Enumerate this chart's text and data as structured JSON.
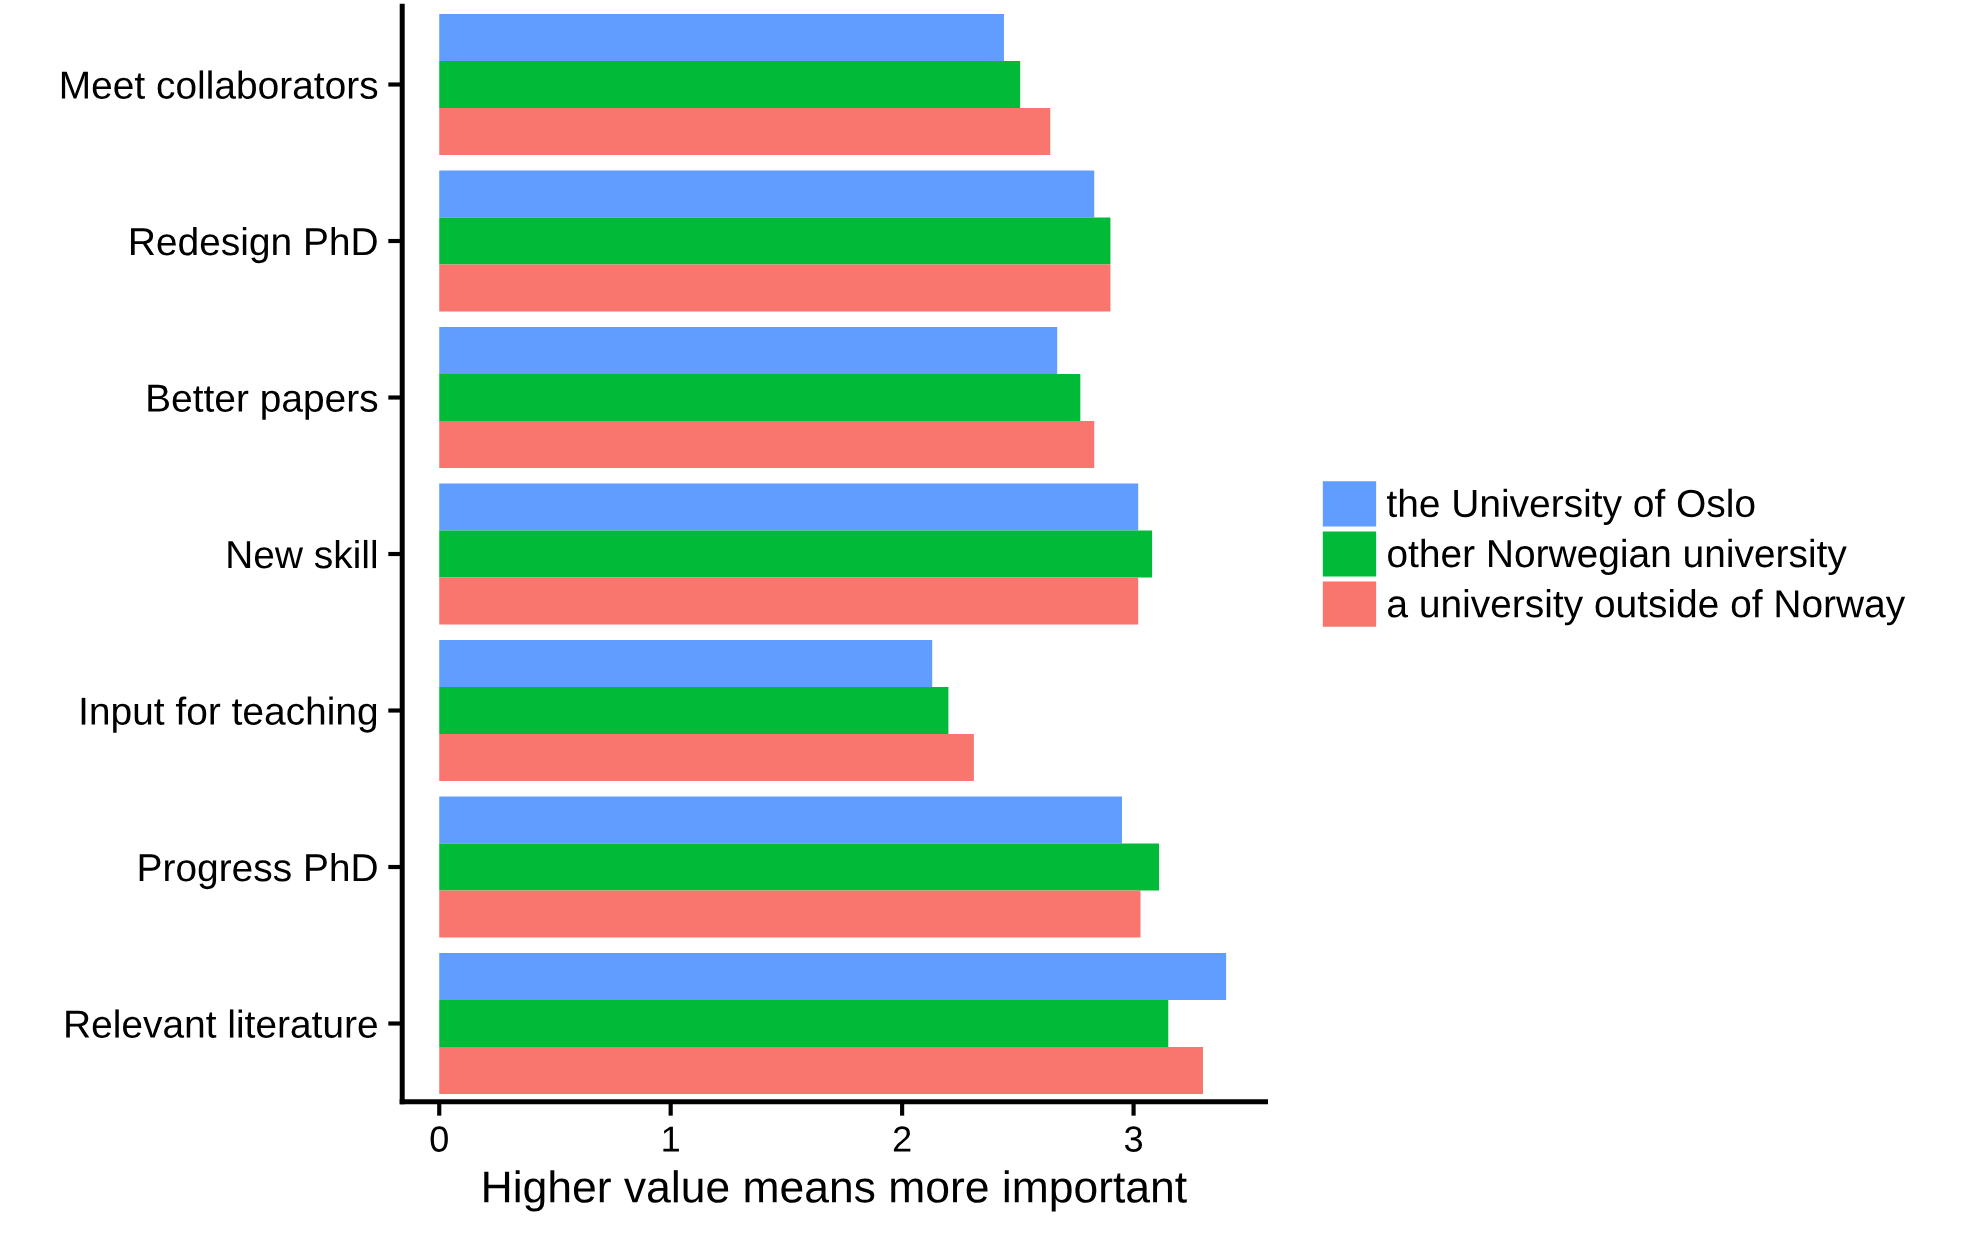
{
  "chart_data": {
    "type": "bar",
    "orientation": "horizontal",
    "xlabel": "Higher value means more important",
    "categories": [
      "Meet collaborators",
      "Redesign PhD",
      "Better papers",
      "New skill",
      "Input for teaching",
      "Progress PhD",
      "Relevant literature"
    ],
    "series": [
      {
        "name": "the University of Oslo",
        "color": "#619cff",
        "values": [
          2.44,
          2.83,
          2.67,
          3.02,
          2.13,
          2.95,
          3.4
        ]
      },
      {
        "name": "other Norwegian university",
        "color": "#00ba38",
        "values": [
          2.51,
          2.9,
          2.77,
          3.08,
          2.2,
          3.11,
          3.15
        ]
      },
      {
        "name": "a university outside of Norway",
        "color": "#f8766d",
        "values": [
          2.64,
          2.9,
          2.83,
          3.02,
          2.31,
          3.03,
          3.3
        ]
      }
    ],
    "xlim": [
      -0.16,
      3.57
    ],
    "xticks": [
      0,
      1,
      2,
      3
    ],
    "grid": false,
    "legend": "right"
  }
}
